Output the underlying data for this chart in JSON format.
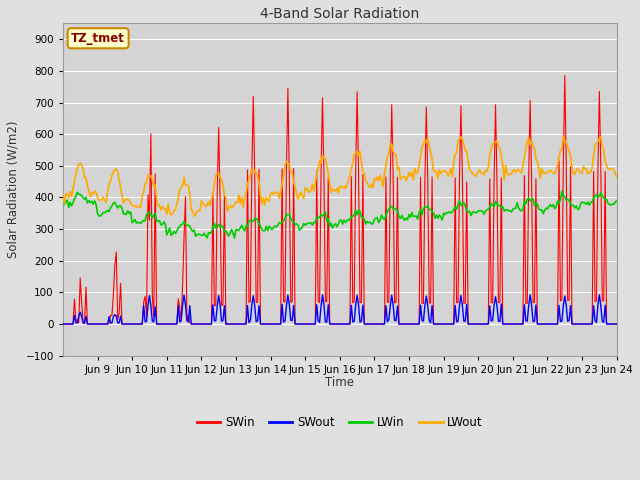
{
  "title": "4-Band Solar Radiation",
  "ylabel": "Solar Radiation (W/m2)",
  "xlabel": "Time",
  "ylim": [
    -100,
    950
  ],
  "xlim": [
    0,
    360
  ],
  "fig_width": 6.4,
  "fig_height": 4.8,
  "fig_dpi": 100,
  "background_color": "#e0e0e0",
  "plot_bg_color": "#d4d4d4",
  "grid_color": "#ffffff",
  "annotation_text": "TZ_tmet",
  "annotation_bg": "#ffffcc",
  "annotation_border": "#cc8800",
  "annotation_text_color": "#8b0000",
  "series_colors": {
    "SWin": "#ff0000",
    "SWout": "#0000ff",
    "LWin": "#00cc00",
    "LWout": "#ffaa00"
  },
  "series_lw": {
    "SWin": 0.8,
    "SWout": 1.0,
    "LWin": 1.2,
    "LWout": 1.2
  },
  "xtick_labels": [
    "Jun 9",
    "Jun 10",
    "Jun 11",
    "Jun 12",
    "Jun 13",
    "Jun 14",
    "Jun 15",
    "Jun 16",
    "Jun 17",
    "Jun 18",
    "Jun 19",
    "Jun 20",
    "Jun 21",
    "Jun 22",
    "Jun 23",
    "Jun 24"
  ],
  "xtick_positions": [
    24,
    48,
    72,
    96,
    120,
    144,
    168,
    192,
    216,
    240,
    264,
    288,
    312,
    336,
    360,
    384
  ],
  "ytick_positions": [
    -100,
    0,
    100,
    200,
    300,
    400,
    500,
    600,
    700,
    800,
    900
  ],
  "n_hours": 385
}
